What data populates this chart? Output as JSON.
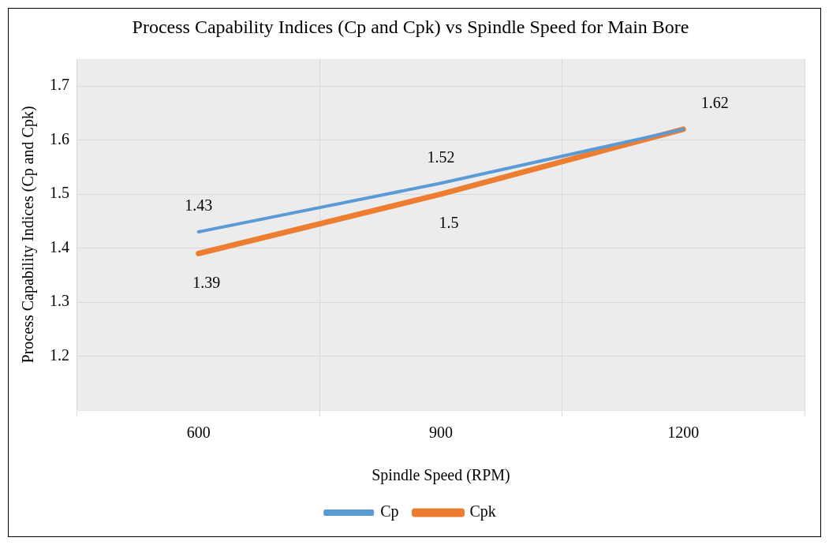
{
  "chart_data": {
    "type": "line",
    "title": "Process Capability Indices (Cp and Cpk) vs Spindle Speed for Main Bore",
    "xlabel": "Spindle Speed (RPM)",
    "ylabel": "Process Capability Indices (Cp and Cpk)",
    "categories": [
      "600",
      "900",
      "1200"
    ],
    "series": [
      {
        "name": "Cp",
        "color": "#5b9bd5",
        "values": [
          1.43,
          1.52,
          1.62
        ],
        "value_labels": [
          "1.43",
          "1.52",
          "1.62"
        ]
      },
      {
        "name": "Cpk",
        "color": "#ed7d31",
        "values": [
          1.39,
          1.5,
          1.62
        ],
        "value_labels": [
          "1.39",
          "1.5",
          null
        ]
      }
    ],
    "ylim": [
      1.1,
      1.75
    ],
    "yticks": [
      1.2,
      1.3,
      1.4,
      1.5,
      1.6,
      1.7
    ],
    "grid": true,
    "legend": "bottom",
    "marker": "none",
    "line_style": "solid"
  }
}
